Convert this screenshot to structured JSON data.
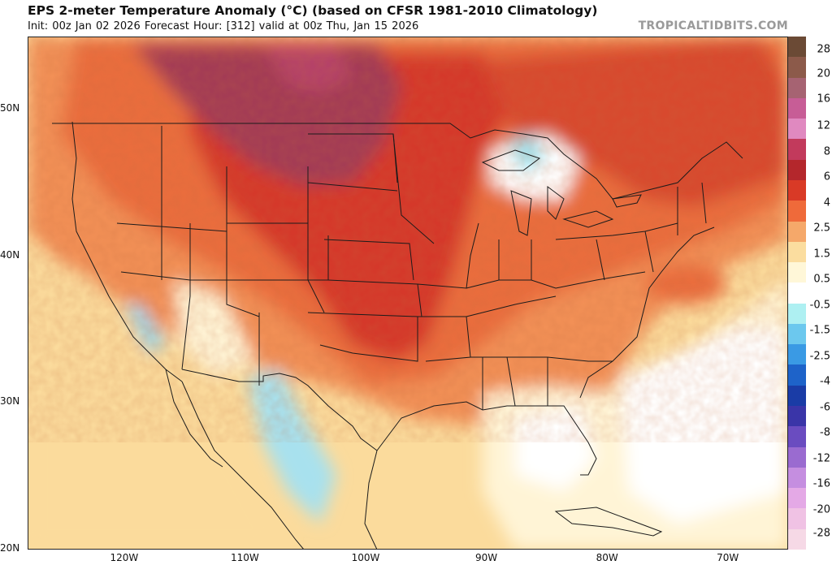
{
  "header": {
    "title": "EPS 2-meter Temperature Anomaly (°C) (based on CFSR 1981-2010 Climatology)",
    "subtitle": "Init: 00z Jan 02 2026   Forecast Hour: [312]   valid at 00z Thu, Jan 15 2026",
    "brand": "TROPICALTIDBITS.COM"
  },
  "map": {
    "extent": {
      "lon": [
        -128,
        -65
      ],
      "lat": [
        20,
        55
      ]
    },
    "lat_labels": [
      "50N",
      "40N",
      "30N",
      "20N"
    ],
    "lat_values": [
      50,
      40,
      30,
      20
    ],
    "lon_labels": [
      "120W",
      "110W",
      "100W",
      "90W",
      "80W",
      "70W"
    ],
    "lon_values": [
      -120,
      -110,
      -100,
      -90,
      -80,
      -70
    ]
  },
  "colorbar": {
    "labels": [
      "28",
      "20",
      "16",
      "12",
      "8",
      "6",
      "4",
      "2.5",
      "1.5",
      "0.5",
      "-0.5",
      "-1.5",
      "-2.5",
      "-4",
      "-6",
      "-8",
      "-12",
      "-16",
      "-20",
      "-28"
    ],
    "colors": [
      "#6b4a35",
      "#8c5a4a",
      "#a66372",
      "#c75d96",
      "#e089c0",
      "#c23a5c",
      "#b4272c",
      "#d93a26",
      "#ef6a3a",
      "#f5a86a",
      "#fbdd9f",
      "#fff7d8",
      "#ffffff",
      "#aef0f2",
      "#6cc8ee",
      "#3a9ae4",
      "#1e63c9",
      "#1a3ca6",
      "#3a35a8",
      "#6a4cc0",
      "#9a6bd0",
      "#c58ee0",
      "#e4a9e6",
      "#f0c2e4",
      "#f6d9e6"
    ]
  }
}
